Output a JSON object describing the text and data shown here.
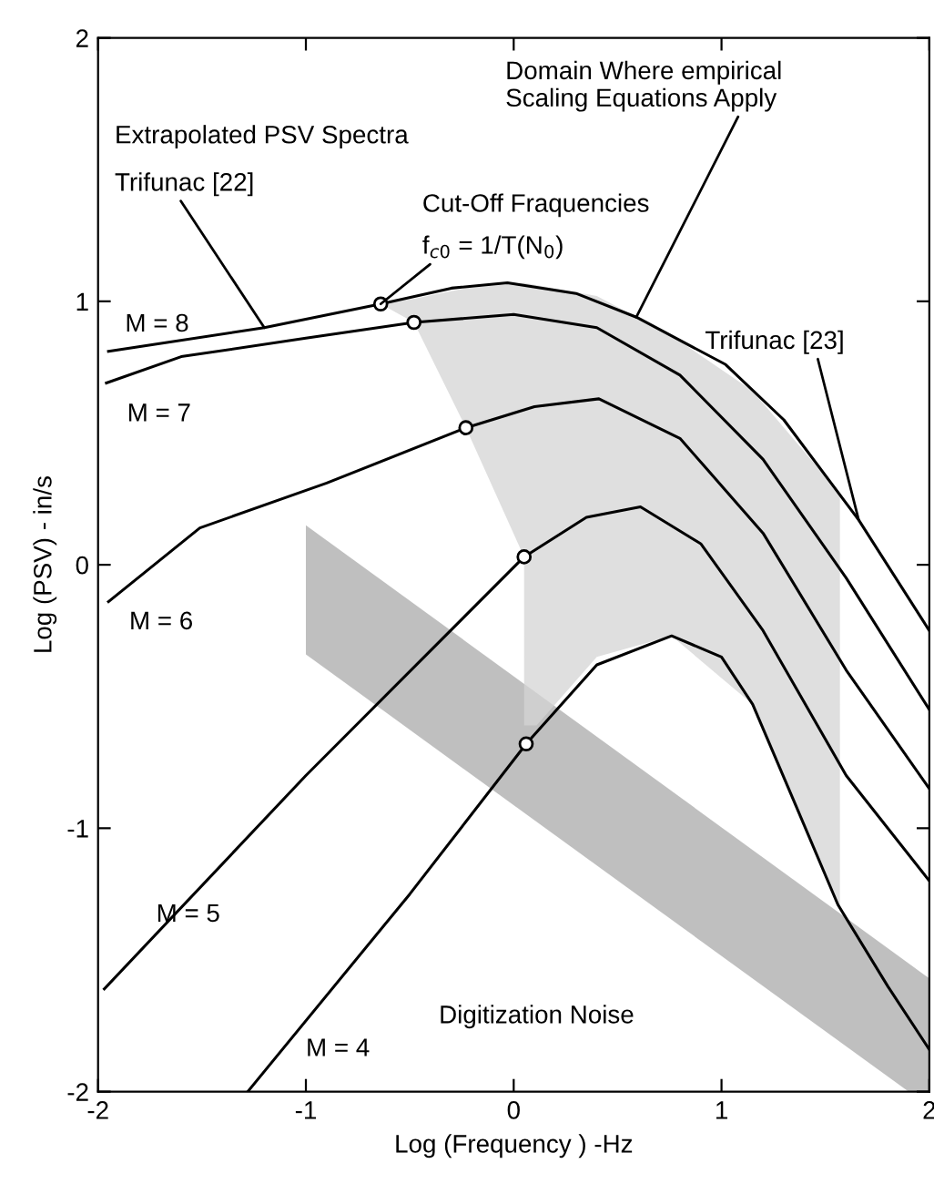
{
  "chart_data": {
    "type": "line",
    "xlabel": "Log (Frequency ) -Hz",
    "ylabel": "Log (PSV) - in/s",
    "xlim": [
      -2,
      2
    ],
    "ylim": [
      -2,
      2
    ],
    "xticks": [
      -2,
      -1,
      0,
      1,
      2
    ],
    "yticks": [
      -2,
      -1,
      0,
      1,
      2
    ],
    "grid": false,
    "legend": false,
    "series": [
      {
        "type": "area",
        "color": "#d4d4d4",
        "x": [
          -0.64,
          -0.48,
          -0.23,
          0.05,
          0.4,
          0.76,
          1.15,
          1.57,
          1.57,
          1.15,
          0.76,
          0.4,
          0.11,
          0.05,
          0.05,
          -0.23,
          -0.48
        ],
        "values": [
          0.99,
          1.01,
          1.05,
          1.07,
          1.02,
          0.87,
          0.66,
          0.27,
          -1.31,
          -0.53,
          -0.27,
          -0.35,
          -0.61,
          -0.61,
          0.03,
          0.52,
          0.92
        ]
      },
      {
        "type": "area",
        "color": "#a9a9a9",
        "x": [
          -1,
          2,
          2,
          1.9,
          -1
        ],
        "values": [
          0.15,
          -1.57,
          -2,
          -2,
          -0.34
        ]
      },
      {
        "name": "M = 8",
        "color": "#000000",
        "x": [
          -1.95,
          -1.2,
          -0.64,
          -0.3,
          -0.03,
          0.3,
          0.59,
          1.02,
          1.3,
          1.66,
          2.0
        ],
        "values": [
          0.81,
          0.9,
          0.99,
          1.05,
          1.07,
          1.03,
          0.94,
          0.76,
          0.55,
          0.17,
          -0.25
        ]
      },
      {
        "name": "M = 7",
        "color": "#000000",
        "x": [
          -1.96,
          -1.6,
          -1.0,
          -0.48,
          0.0,
          0.4,
          0.8,
          1.2,
          1.6,
          2.0
        ],
        "values": [
          0.69,
          0.79,
          0.86,
          0.92,
          0.95,
          0.9,
          0.72,
          0.4,
          -0.05,
          -0.55
        ]
      },
      {
        "name": "M = 6",
        "color": "#000000",
        "x": [
          -1.95,
          -1.51,
          -0.9,
          -0.23,
          0.1,
          0.41,
          0.8,
          1.2,
          1.6,
          2.0
        ],
        "values": [
          -0.14,
          0.14,
          0.31,
          0.52,
          0.6,
          0.63,
          0.48,
          0.12,
          -0.4,
          -0.85
        ]
      },
      {
        "name": "M = 5",
        "color": "#000000",
        "x": [
          -1.97,
          -1.0,
          0.05,
          0.35,
          0.61,
          0.9,
          1.2,
          1.6,
          2.0
        ],
        "values": [
          -1.61,
          -0.8,
          0.03,
          0.18,
          0.22,
          0.08,
          -0.25,
          -0.8,
          -1.2
        ]
      },
      {
        "name": "M = 4",
        "color": "#000000",
        "x": [
          -1.28,
          -0.5,
          0.06,
          0.4,
          0.76,
          1.0,
          1.15,
          1.35,
          1.56,
          1.8,
          2.0
        ],
        "values": [
          -2,
          -1.25,
          -0.68,
          -0.38,
          -0.27,
          -0.35,
          -0.53,
          -0.9,
          -1.29,
          -1.6,
          -1.84
        ]
      },
      {
        "type": "scatter",
        "marker": "circle",
        "color": "#000000",
        "x": [
          -0.64,
          -0.48,
          -0.23,
          0.05,
          0.06
        ],
        "values": [
          0.99,
          0.92,
          0.52,
          0.03,
          -0.68
        ]
      }
    ],
    "annotations": [
      "Extrapolated PSV Spectra",
      {
        "text": "Trifunac [22]",
        "x": -1.2,
        "y": 0.9
      },
      "Cut-Off Fraquencies",
      {
        "text": "f$_{c0}$ = 1/T(N$_{0}$)",
        "x": -0.64,
        "y": 0.99
      },
      {
        "text": "Domain Where empirical\nScaling Equations Apply",
        "x": 0.59,
        "y": 0.94
      },
      {
        "text": "Trifunac [23]",
        "x": 1.66,
        "y": 0.17
      },
      "Digitization Noise"
    ]
  }
}
